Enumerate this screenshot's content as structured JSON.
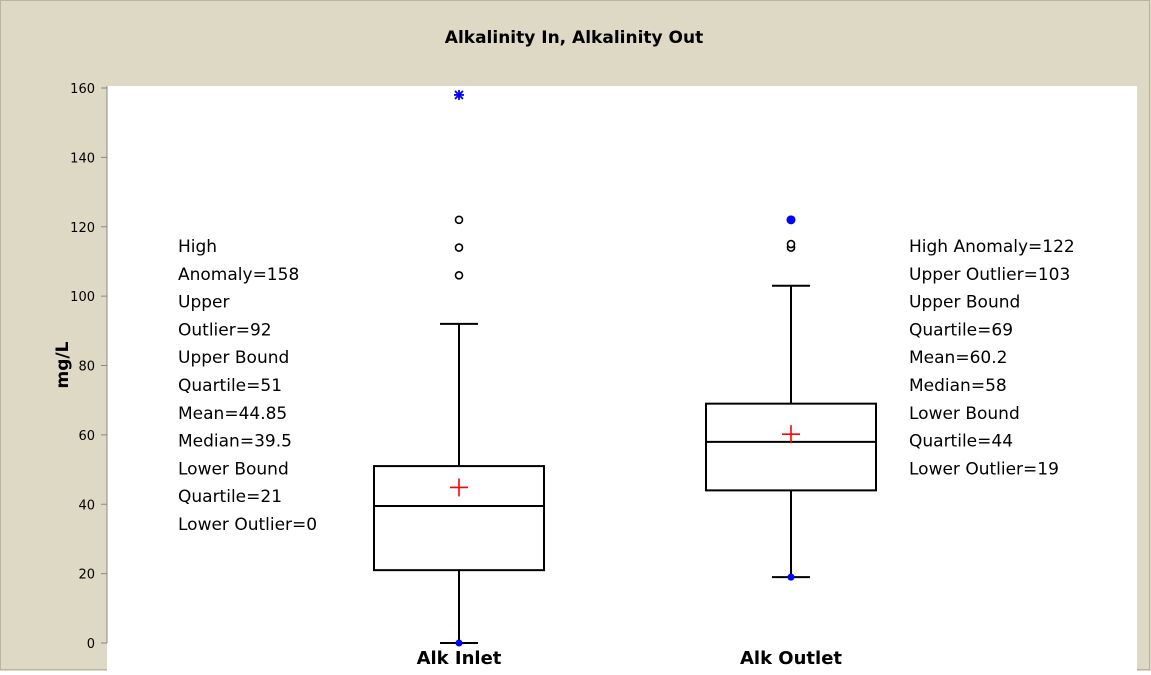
{
  "chart_data": {
    "type": "box",
    "title": "Alkalinity In, Alkalinity Out",
    "xlabel": "",
    "ylabel": "mg/L",
    "ylim": [
      0,
      160
    ],
    "yticks": [
      0,
      20,
      40,
      60,
      80,
      100,
      120,
      140,
      160
    ],
    "grid": false,
    "colors": {
      "frame_background": "#ddd9c4",
      "plot_background": "#ffffff",
      "box_stroke": "#000000",
      "mean_marker": "#ff0000",
      "extreme_marker": "#0000ff",
      "outlier_marker": "#000000"
    },
    "series": [
      {
        "category": "Alk Inlet",
        "whisker_low": 0,
        "q1": 21,
        "median": 39.5,
        "mean": 44.85,
        "q3": 51,
        "whisker_high": 92,
        "outliers": [
          106,
          114,
          122
        ],
        "anomalies": [
          158
        ],
        "stats_lines": [
          "High",
          "Anomaly=158",
          "Upper",
          "Outlier=92",
          "Upper Bound",
          "Quartile=51",
          "Mean=44.85",
          "Median=39.5",
          "Lower Bound",
          "Quartile=21",
          "Lower Outlier=0"
        ]
      },
      {
        "category": "Alk Outlet",
        "whisker_low": 19,
        "q1": 44,
        "median": 58,
        "mean": 60.2,
        "q3": 69,
        "whisker_high": 103,
        "outliers": [
          114,
          115
        ],
        "anomalies": [
          122
        ],
        "stats_lines": [
          "High Anomaly=122",
          "Upper Outlier=103",
          "Upper Bound",
          "Quartile=69",
          "Mean=60.2",
          "Median=58",
          "Lower Bound",
          "Quartile=44",
          "Lower Outlier=19"
        ]
      }
    ]
  }
}
